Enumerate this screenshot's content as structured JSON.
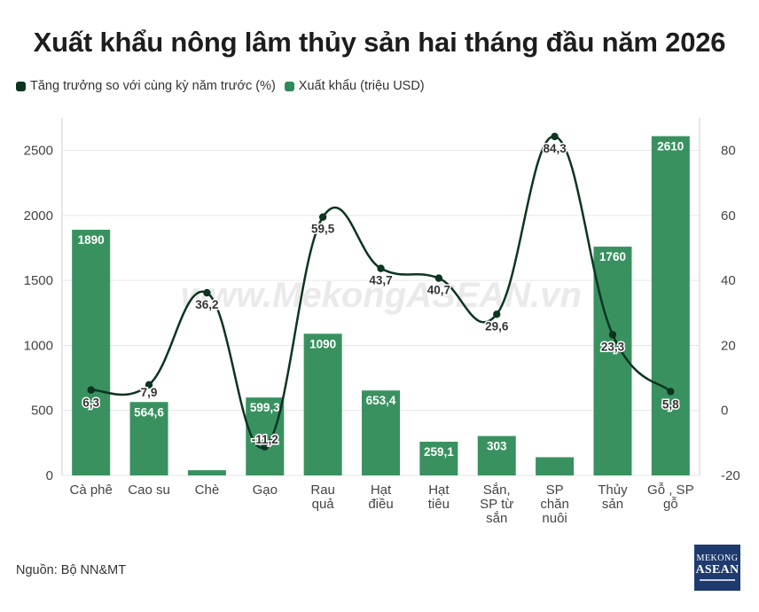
{
  "chart_data": {
    "type": "bar",
    "title": "Xuất khẩu nông lâm thủy sản hai tháng đầu năm 2026",
    "categories": [
      [
        "Cà phê"
      ],
      [
        "Cao su"
      ],
      [
        "Chè"
      ],
      [
        "Gạo"
      ],
      [
        "Rau",
        "quả"
      ],
      [
        "Hạt",
        "điều"
      ],
      [
        "Hạt",
        "tiêu"
      ],
      [
        "Sắn,",
        "SP từ",
        "sắn"
      ],
      [
        "SP",
        "chăn",
        "nuôi"
      ],
      [
        "Thủy",
        "sản"
      ],
      [
        "Gỗ , SP",
        "gỗ"
      ]
    ],
    "series": [
      {
        "name": "Xuất khẩu (triệu USD)",
        "type": "bar",
        "axis": "left",
        "color": "#2e8b57",
        "values": [
          1890,
          564.6,
          40,
          599.3,
          1090,
          653.4,
          259.1,
          303,
          140,
          1760,
          2610
        ],
        "labels": [
          "1890",
          "564,6",
          "",
          "599,3",
          "1090",
          "653,4",
          "259,1",
          "303",
          "",
          "1760",
          "2610"
        ]
      },
      {
        "name": "Tăng trưởng so với cùng kỳ năm trước (%)",
        "type": "line",
        "axis": "right",
        "color": "#0c3520",
        "values": [
          6.3,
          7.9,
          36.2,
          -11.2,
          59.5,
          43.7,
          40.7,
          29.6,
          84.3,
          23.3,
          5.8
        ],
        "labels": [
          "6,3",
          "7,9",
          "36,2",
          "-11,2",
          "59,5",
          "43,7",
          "40,7",
          "29,6",
          "84,3",
          "23,3",
          "5,8"
        ]
      }
    ],
    "y_left": {
      "min": 0,
      "max": 2750,
      "ticks": [
        "0",
        "500",
        "1000",
        "1500",
        "2000",
        "2500"
      ]
    },
    "y_right": {
      "min": -20,
      "max": 90,
      "ticks": [
        "-20",
        "0",
        "20",
        "40",
        "60",
        "80"
      ]
    },
    "grid": true,
    "legend_position": "top-left"
  },
  "source": "Nguồn: Bộ NN&MT",
  "watermark": "www.MekongASEAN.vn",
  "logo": {
    "line1": "MEKONG",
    "line2": "ASEAN"
  }
}
